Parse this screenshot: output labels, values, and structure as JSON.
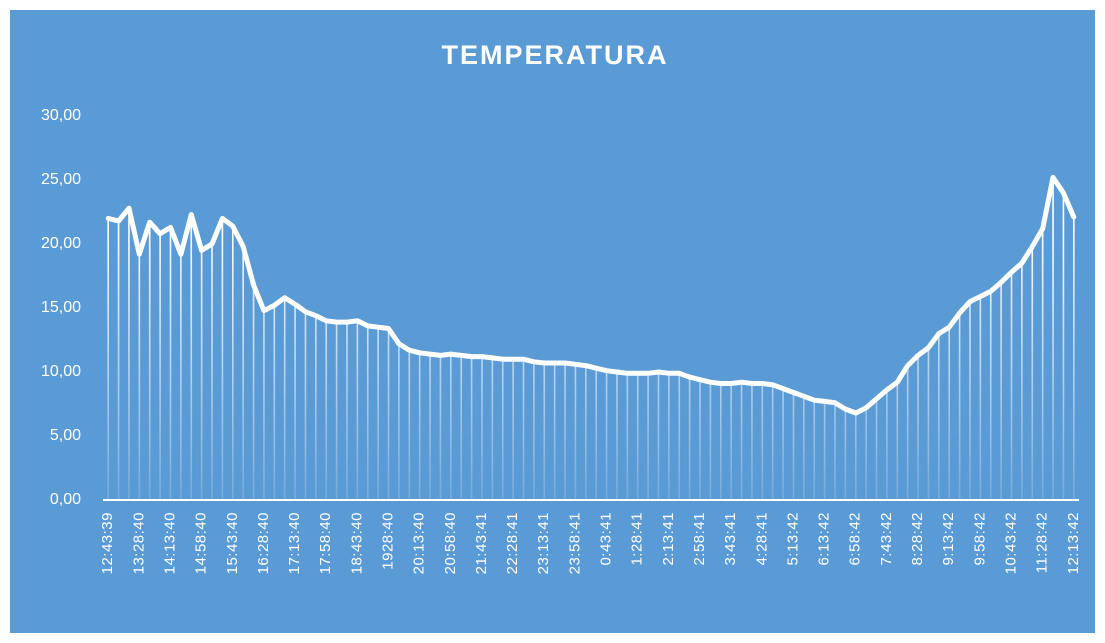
{
  "chart_data": {
    "type": "line",
    "title": "TEMPERATURA",
    "color": "#ffffff",
    "drop_lines": true,
    "categories": [
      "12:43:39",
      null,
      null,
      "13:28:40",
      null,
      null,
      "14:13:40",
      null,
      null,
      "14:58:40",
      null,
      null,
      "15:43:40",
      null,
      null,
      "16:28:40",
      null,
      null,
      "17:13:40",
      null,
      null,
      "17:58:40",
      null,
      null,
      "18:43:40",
      null,
      null,
      "1928:40",
      null,
      null,
      "20:13:40",
      null,
      null,
      "20:58:40",
      null,
      null,
      "21:43:41",
      null,
      null,
      "22:28:41",
      null,
      null,
      "23:13:41",
      null,
      null,
      "23:58:41",
      null,
      null,
      "0:43:41",
      null,
      null,
      "1:28:41",
      null,
      null,
      "2:13:41",
      null,
      null,
      "2:58:41",
      null,
      null,
      "3:43:41",
      null,
      null,
      "4:28:41",
      null,
      null,
      "5:13:42",
      null,
      null,
      "6:13:42",
      null,
      null,
      "6:58:42",
      null,
      null,
      "7:43:42",
      null,
      null,
      "8:28:42",
      null,
      null,
      "9:13:42",
      null,
      null,
      "9:58:42",
      null,
      null,
      "10:43:42",
      null,
      null,
      "11:28:42",
      null,
      null,
      "12:13:42"
    ],
    "values": [
      22.0,
      21.8,
      22.8,
      19.2,
      21.7,
      20.8,
      21.3,
      19.2,
      22.3,
      19.5,
      20.0,
      22.0,
      21.4,
      19.8,
      16.8,
      14.8,
      15.2,
      15.8,
      15.3,
      14.7,
      14.4,
      14.0,
      13.9,
      13.9,
      14.0,
      13.6,
      13.5,
      13.4,
      12.2,
      11.7,
      11.5,
      11.4,
      11.3,
      11.4,
      11.3,
      11.2,
      11.2,
      11.1,
      11.0,
      11.0,
      11.0,
      10.8,
      10.7,
      10.7,
      10.7,
      10.6,
      10.5,
      10.3,
      10.1,
      10.0,
      9.9,
      9.9,
      9.9,
      10.0,
      9.9,
      9.9,
      9.6,
      9.4,
      9.2,
      9.1,
      9.1,
      9.2,
      9.1,
      9.1,
      9.0,
      8.7,
      8.4,
      8.1,
      7.8,
      7.7,
      7.6,
      7.1,
      6.8,
      7.2,
      7.9,
      8.6,
      9.2,
      10.5,
      11.3,
      11.9,
      13.0,
      13.5,
      14.6,
      15.5,
      15.9,
      16.3,
      17.0,
      17.8,
      18.5,
      19.8,
      21.2,
      25.2,
      24.0,
      22.1
    ],
    "ylim": [
      0,
      30
    ],
    "yticks": [
      {
        "value": 0,
        "label": "0,00"
      },
      {
        "value": 5,
        "label": "5,00"
      },
      {
        "value": 10,
        "label": "10,00"
      },
      {
        "value": 15,
        "label": "15,00"
      },
      {
        "value": 20,
        "label": "20,00"
      },
      {
        "value": 25,
        "label": "25,00"
      },
      {
        "value": 30,
        "label": "30,00"
      }
    ],
    "grid": false
  }
}
